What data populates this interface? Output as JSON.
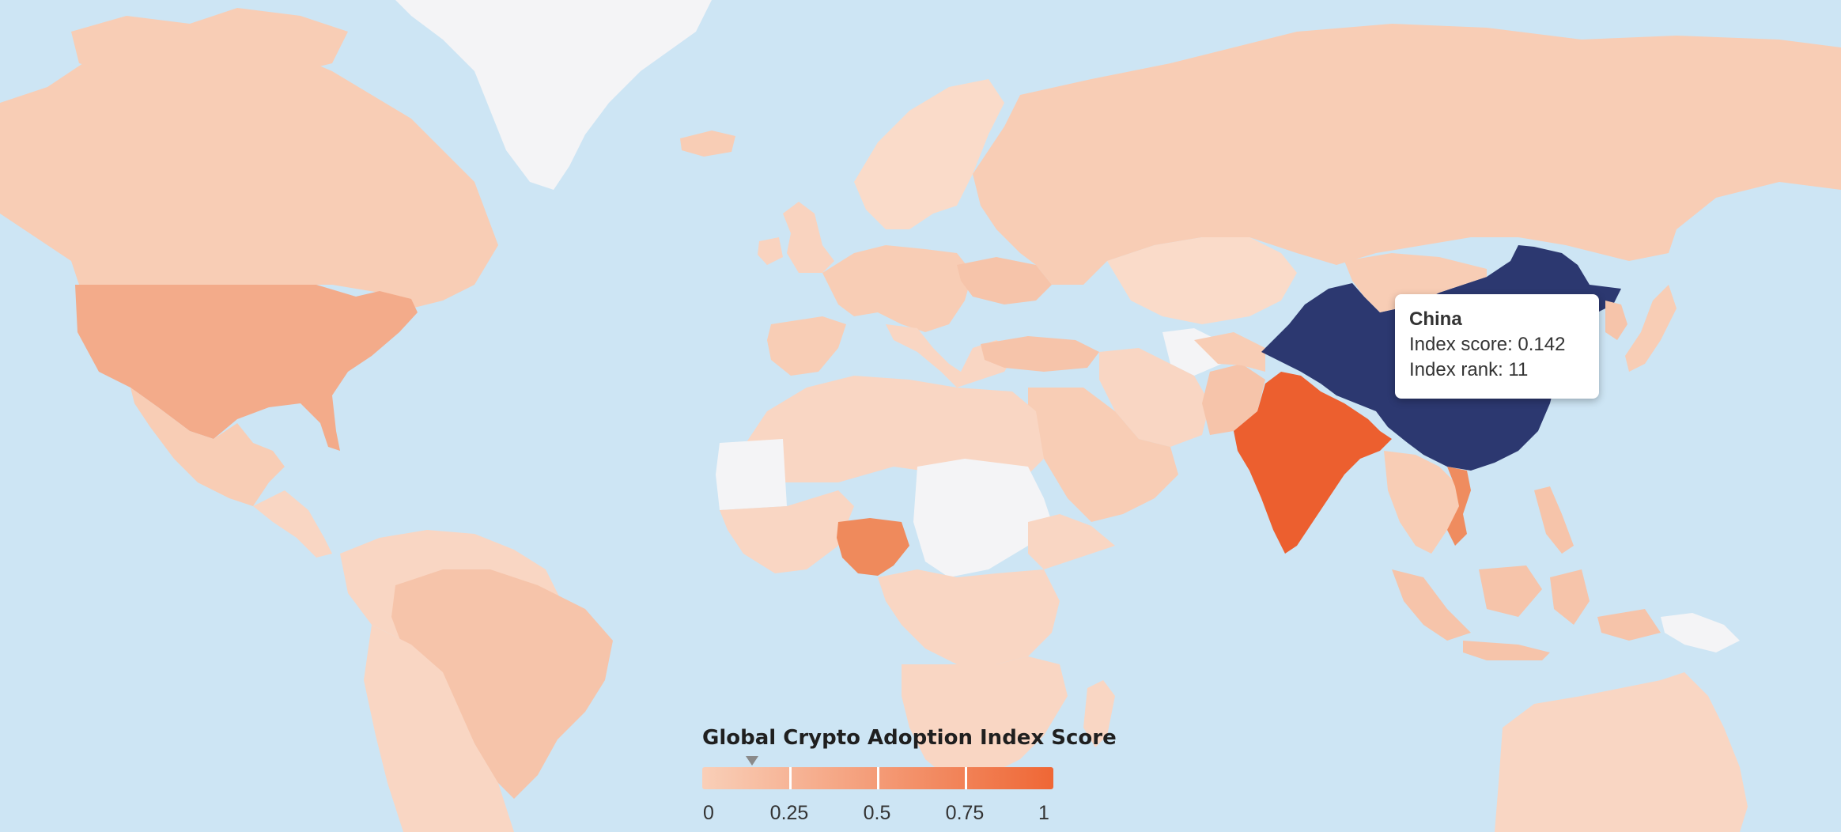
{
  "colors": {
    "ocean": "#cde5f4",
    "no_data": "#f4f4f6",
    "scale_low": "#f9cfb8",
    "scale_high": "#ef6735",
    "selected": "#2c3870",
    "usa": "#f3ab8a",
    "nigeria": "#ef8a5c",
    "india": "#ec5f2f",
    "vietnam": "#ef8c5f"
  },
  "tooltip": {
    "country": "China",
    "score_line": "Index score: 0.142",
    "rank_line": "Index rank: 11"
  },
  "legend": {
    "title": "Global Crypto Adoption Index Score",
    "ticks": [
      "0",
      "0.25",
      "0.5",
      "0.75",
      "1"
    ],
    "marker_value": 0.142
  },
  "chart_data": {
    "type": "choropleth",
    "title": "Global Crypto Adoption Index Score",
    "scale_range": [
      0,
      1
    ],
    "selected": {
      "country": "China",
      "score": 0.142,
      "rank": 11
    }
  }
}
